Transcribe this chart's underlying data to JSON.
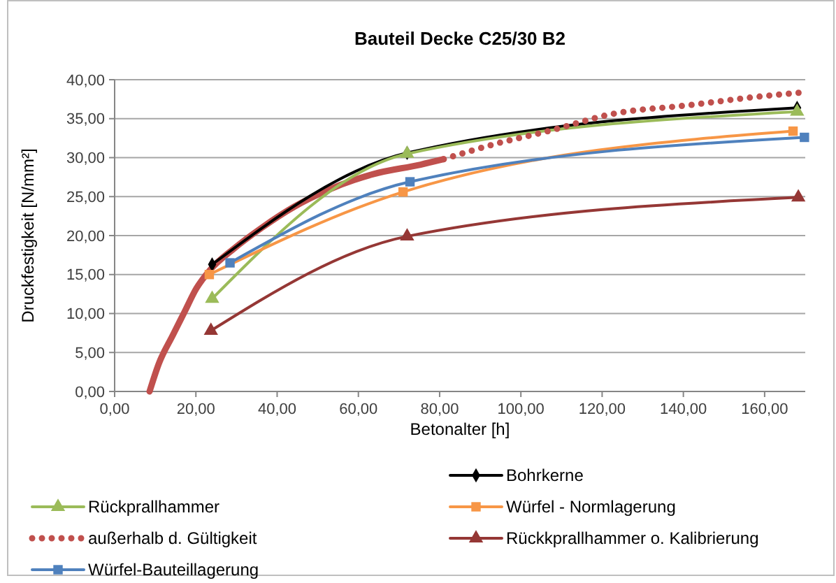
{
  "chart_data": {
    "type": "line",
    "title": "Bauteil Decke C25/30 B2",
    "xlabel": "Betonalter [h]",
    "ylabel": "Druckfestigkeit  [N/mm²]",
    "xlim": [
      0,
      170
    ],
    "ylim": [
      0,
      40
    ],
    "xticks": [
      {
        "value": 0,
        "label": "0,00"
      },
      {
        "value": 20,
        "label": "20,00"
      },
      {
        "value": 40,
        "label": "40,00"
      },
      {
        "value": 60,
        "label": "60,00"
      },
      {
        "value": 80,
        "label": "80,00"
      },
      {
        "value": 100,
        "label": "100,00"
      },
      {
        "value": 120,
        "label": "120,00"
      },
      {
        "value": 140,
        "label": "140,00"
      },
      {
        "value": 160,
        "label": "160,00"
      }
    ],
    "yticks": [
      {
        "value": 0,
        "label": "0,00"
      },
      {
        "value": 5,
        "label": "5,00"
      },
      {
        "value": 10,
        "label": "10,00"
      },
      {
        "value": 15,
        "label": "15,00"
      },
      {
        "value": 20,
        "label": "20,00"
      },
      {
        "value": 25,
        "label": "25,00"
      },
      {
        "value": 30,
        "label": "30,00"
      },
      {
        "value": 35,
        "label": "35,00"
      },
      {
        "value": 40,
        "label": "40,00"
      }
    ],
    "grid": "y",
    "legend": "bottom",
    "series": [
      {
        "color": "#c0504d",
        "marker": "none",
        "line_style": "solid",
        "x": [
          8.6,
          10.9,
          14.3,
          17.2,
          20.1,
          23.5,
          29.3,
          36.2,
          44.2,
          52.3,
          63.8,
          75.3,
          81
        ],
        "values": [
          0,
          3.6,
          7.2,
          10.2,
          13.2,
          15.6,
          18.3,
          21,
          23.7,
          25.8,
          27.9,
          29.1,
          29.8
        ]
      },
      {
        "name": "Bohrkerne",
        "color": "#000000",
        "marker": "diamond",
        "line_style": "solid",
        "x": [
          24,
          72,
          168
        ],
        "values": [
          16.3,
          30.6,
          36.4
        ]
      },
      {
        "name": "Rückprallhammer",
        "color": "#9bbb59",
        "marker": "triangle",
        "line_style": "solid",
        "x": [
          24,
          72,
          168
        ],
        "values": [
          11.9,
          30.5,
          35.9
        ]
      },
      {
        "name": "Würfel - Normlagerung",
        "color": "#f79646",
        "marker": "square",
        "line_style": "solid",
        "x": [
          23.3,
          71,
          167
        ],
        "values": [
          15,
          25.6,
          33.4
        ]
      },
      {
        "name": "außerhalb d. Gültigkeit",
        "color": "#c0504d",
        "marker": "none",
        "line_style": "dotted",
        "x": [
          81,
          94,
          106,
          123.5,
          140.8,
          158,
          170
        ],
        "values": [
          29.8,
          31.8,
          33.3,
          35.7,
          36.7,
          37.8,
          38.4
        ]
      },
      {
        "name": "Rückkprallhammer o. Kalibrierung",
        "color": "#953735",
        "marker": "triangle",
        "line_style": "solid",
        "x": [
          23.7,
          72,
          168.3
        ],
        "values": [
          7.8,
          19.9,
          24.9
        ]
      },
      {
        "name": "Würfel-Bauteillagerung",
        "color": "#4f81bd",
        "marker": "square",
        "line_style": "solid",
        "x": [
          28.4,
          72.7,
          169.8
        ],
        "values": [
          16.5,
          26.9,
          32.6
        ]
      }
    ]
  }
}
